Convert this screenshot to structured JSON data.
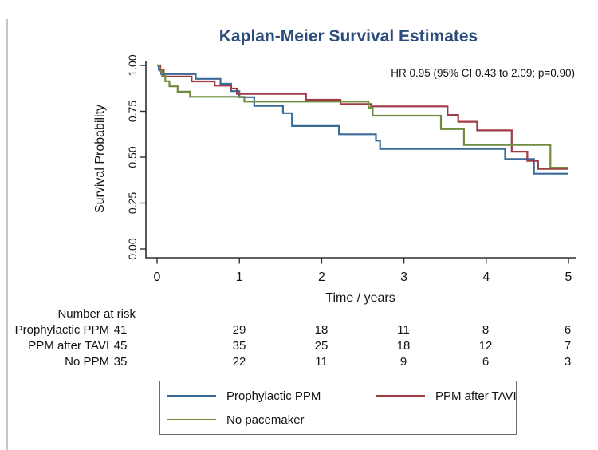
{
  "title": "Kaplan-Meier Survival Estimates",
  "annotation": "HR 0.95 (95% CI 0.43 to 2.09; p=0.90)",
  "colors": {
    "title": "#2c4c7c",
    "axis": "#2e2e2e",
    "text": "#141414",
    "blue": "#3a6a97",
    "red": "#9e3b45",
    "green": "#6f8c3f"
  },
  "chart_data": {
    "type": "line",
    "subtype": "kaplan-meier-step",
    "title": "Kaplan-Meier Survival Estimates",
    "annotation": "HR 0.95 (95% CI 0.43 to 2.09; p=0.90)",
    "xlabel": "Time / years",
    "ylabel": "Survival Probability",
    "xlim": [
      0,
      5
    ],
    "ylim": [
      0,
      1
    ],
    "xticks": [
      "0",
      "1",
      "2",
      "3",
      "4",
      "5"
    ],
    "yticks": [
      "0.00",
      "0.25",
      "0.50",
      "0.75",
      "1.00"
    ],
    "grid": false,
    "legend_position": "bottom",
    "series": [
      {
        "name": "Prophylactic PPM",
        "color": "#3a6a97",
        "steps": [
          [
            0,
            1.0
          ],
          [
            0.02,
            0.976
          ],
          [
            0.05,
            0.953
          ],
          [
            0.47,
            0.927
          ],
          [
            0.77,
            0.9
          ],
          [
            0.9,
            0.86
          ],
          [
            1.0,
            0.827
          ],
          [
            1.18,
            0.78
          ],
          [
            1.53,
            0.74
          ],
          [
            1.64,
            0.67
          ],
          [
            2.21,
            0.625
          ],
          [
            2.66,
            0.59
          ],
          [
            2.71,
            0.545
          ],
          [
            4.23,
            0.49
          ],
          [
            4.58,
            0.41
          ]
        ]
      },
      {
        "name": "PPM after TAVI",
        "color": "#9e3b45",
        "steps": [
          [
            0,
            1.0
          ],
          [
            0.04,
            0.978
          ],
          [
            0.08,
            0.94
          ],
          [
            0.42,
            0.913
          ],
          [
            0.7,
            0.89
          ],
          [
            0.9,
            0.874
          ],
          [
            0.97,
            0.845
          ],
          [
            1.81,
            0.813
          ],
          [
            2.23,
            0.79
          ],
          [
            2.6,
            0.777
          ],
          [
            3.53,
            0.73
          ],
          [
            3.66,
            0.693
          ],
          [
            3.89,
            0.646
          ],
          [
            4.31,
            0.53
          ],
          [
            4.5,
            0.48
          ],
          [
            4.63,
            0.436
          ]
        ]
      },
      {
        "name": "No pacemaker",
        "color": "#6f8c3f",
        "steps": [
          [
            0,
            1.0
          ],
          [
            0.03,
            0.971
          ],
          [
            0.06,
            0.943
          ],
          [
            0.1,
            0.914
          ],
          [
            0.15,
            0.886
          ],
          [
            0.25,
            0.857
          ],
          [
            0.4,
            0.829
          ],
          [
            1.06,
            0.803
          ],
          [
            2.57,
            0.77
          ],
          [
            2.62,
            0.726
          ],
          [
            3.45,
            0.653
          ],
          [
            3.73,
            0.567
          ],
          [
            4.78,
            0.443
          ]
        ]
      }
    ]
  },
  "risk_table": {
    "header": "Number at risk",
    "rows": [
      {
        "label": "Prophylactic PPM",
        "values": [
          "41",
          "29",
          "18",
          "11",
          "8",
          "6"
        ]
      },
      {
        "label": "PPM after TAVI",
        "values": [
          "45",
          "35",
          "25",
          "18",
          "12",
          "7"
        ]
      },
      {
        "label": "No PPM",
        "values": [
          "35",
          "22",
          "11",
          "9",
          "6",
          "3"
        ]
      }
    ]
  },
  "legend": {
    "items": [
      {
        "label": "Prophylactic PPM",
        "color": "#3a6a97"
      },
      {
        "label": "PPM after TAVI",
        "color": "#9e3b45"
      },
      {
        "label": "No pacemaker",
        "color": "#6f8c3f"
      }
    ]
  }
}
